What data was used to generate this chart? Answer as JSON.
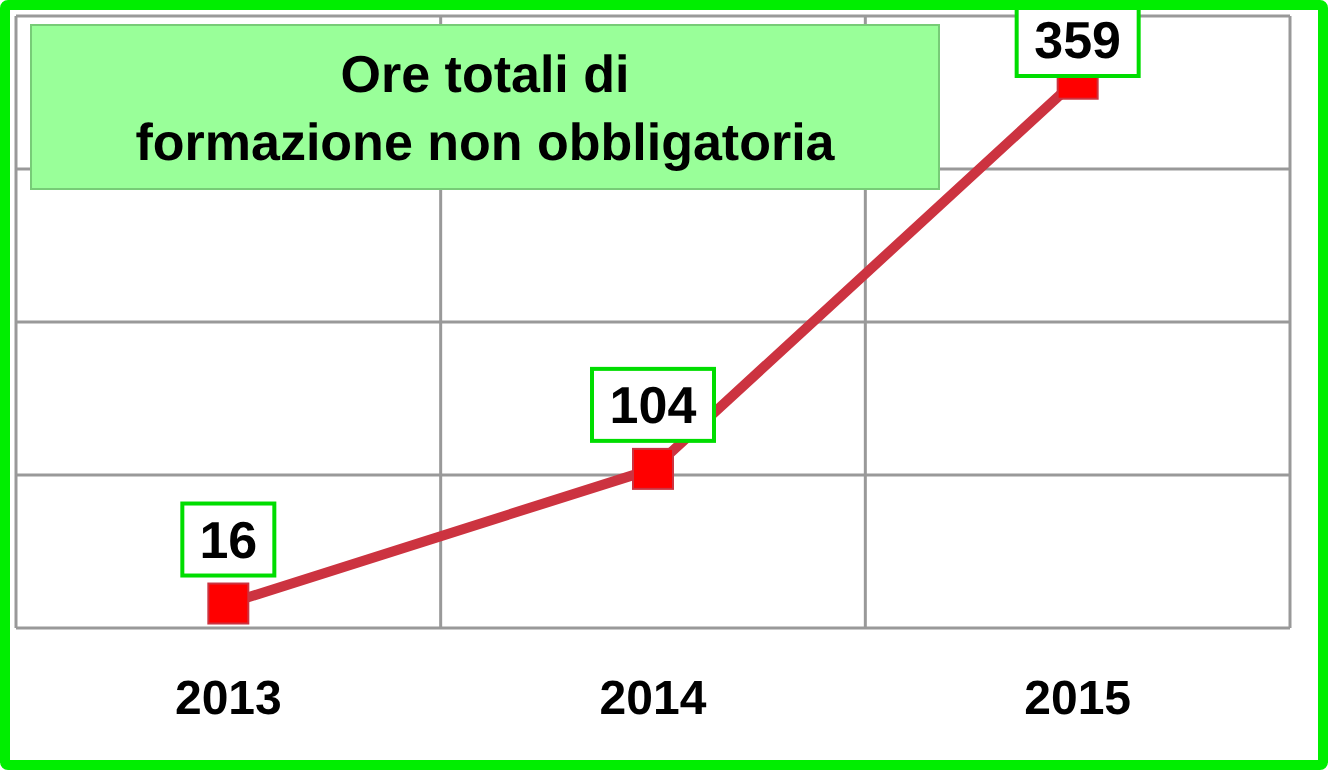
{
  "chart_data": {
    "type": "line",
    "title": "Ore totali di\nformazione non obbligatoria",
    "categories": [
      "2013",
      "2014",
      "2015"
    ],
    "series": [
      {
        "color": "#cc3340",
        "values": [
          16,
          104,
          359
        ]
      }
    ],
    "ylim": [
      0,
      400
    ],
    "yticks": [
      {
        "value": 0,
        "label": null
      },
      {
        "value": 100,
        "label": null
      },
      {
        "value": 200,
        "label": null
      },
      {
        "value": 300,
        "label": null
      },
      {
        "value": 400,
        "label": null
      }
    ],
    "grid": true,
    "tick_labels": "x",
    "marker": "square",
    "data_labels": true
  }
}
